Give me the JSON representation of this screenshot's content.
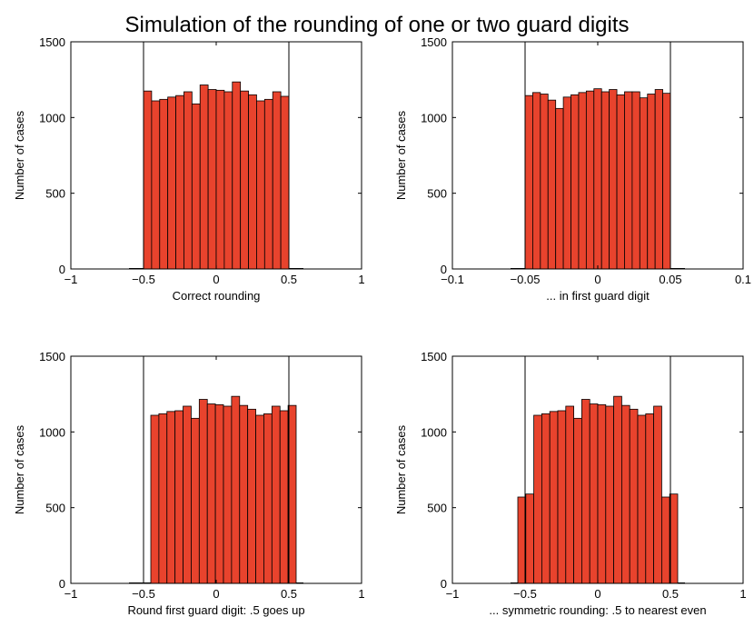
{
  "figure_title": "Simulation of the rounding of one  or two guard digits",
  "colors": {
    "bar_fill": "#e8432d",
    "bar_stroke": "#000000",
    "axis": "#000000"
  },
  "chart_data": [
    {
      "type": "bar",
      "ylabel": "Number of cases",
      "xlabel": "Correct rounding",
      "xlim": [
        -1,
        1
      ],
      "ylim": [
        0,
        1500
      ],
      "xticks": [
        -1,
        -0.5,
        0,
        0.5,
        1
      ],
      "xtick_labels": [
        "−1",
        "−0.5",
        "0",
        "0.5",
        "1"
      ],
      "yticks": [
        0,
        500,
        1000,
        1500
      ],
      "ytick_labels": [
        "0",
        "500",
        "1000",
        "1500"
      ],
      "vlines": [
        -0.5,
        0.5
      ],
      "bin_edges": [
        -0.5,
        0.5
      ],
      "values": [
        1175,
        1110,
        1120,
        1135,
        1145,
        1170,
        1090,
        1215,
        1185,
        1180,
        1170,
        1235,
        1175,
        1150,
        1110,
        1120,
        1170,
        1140
      ]
    },
    {
      "type": "bar",
      "ylabel": "Number of cases",
      "xlabel": "... in first guard digit",
      "xlim": [
        -0.1,
        0.1
      ],
      "ylim": [
        0,
        1500
      ],
      "xticks": [
        -0.1,
        -0.05,
        0,
        0.05,
        0.1
      ],
      "xtick_labels": [
        "−0.1",
        "−0.05",
        "0",
        "0.05",
        "0.1"
      ],
      "yticks": [
        0,
        500,
        1000,
        1500
      ],
      "ytick_labels": [
        "0",
        "500",
        "1000",
        "1500"
      ],
      "vlines": [
        -0.05,
        0.05
      ],
      "bin_edges": [
        -0.05,
        0.05
      ],
      "values": [
        1145,
        1165,
        1155,
        1115,
        1060,
        1135,
        1150,
        1165,
        1175,
        1190,
        1170,
        1185,
        1150,
        1170,
        1170,
        1130,
        1155,
        1185,
        1160
      ]
    },
    {
      "type": "bar",
      "ylabel": "Number of cases",
      "xlabel": "Round first guard digit: .5 goes up",
      "xlim": [
        -1,
        1
      ],
      "ylim": [
        0,
        1500
      ],
      "xticks": [
        -1,
        -0.5,
        0,
        0.5,
        1
      ],
      "xtick_labels": [
        "−1",
        "−0.5",
        "0",
        "0.5",
        "1"
      ],
      "yticks": [
        0,
        500,
        1000,
        1500
      ],
      "ytick_labels": [
        "0",
        "500",
        "1000",
        "1500"
      ],
      "vlines": [
        -0.5,
        0.5
      ],
      "bin_edges": [
        -0.45,
        0.55
      ],
      "values": [
        1110,
        1120,
        1135,
        1140,
        1170,
        1090,
        1215,
        1185,
        1180,
        1170,
        1235,
        1175,
        1150,
        1110,
        1120,
        1170,
        1140,
        1175
      ]
    },
    {
      "type": "bar",
      "ylabel": "Number of cases",
      "xlabel": "... symmetric rounding: .5 to nearest even",
      "xlim": [
        -1,
        1
      ],
      "ylim": [
        0,
        1500
      ],
      "xticks": [
        -1,
        -0.5,
        0,
        0.5,
        1
      ],
      "xtick_labels": [
        "−1",
        "−0.5",
        "0",
        "0.5",
        "1"
      ],
      "yticks": [
        0,
        500,
        1000,
        1500
      ],
      "ytick_labels": [
        "0",
        "500",
        "1000",
        "1500"
      ],
      "vlines": [
        -0.5,
        0.5
      ],
      "bin_edges": [
        -0.55,
        0.55
      ],
      "values": [
        570,
        590,
        1110,
        1120,
        1135,
        1140,
        1170,
        1090,
        1215,
        1185,
        1180,
        1170,
        1235,
        1175,
        1150,
        1110,
        1120,
        1170,
        570,
        590
      ]
    }
  ]
}
